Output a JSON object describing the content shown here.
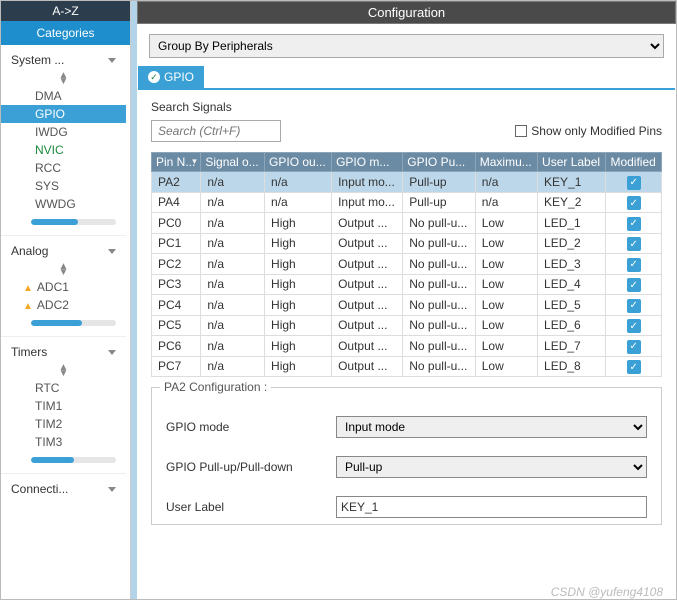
{
  "sidebar": {
    "az_label": "A->Z",
    "categories_label": "Categories",
    "groups": [
      {
        "title": "System ...",
        "items": [
          {
            "label": "DMA"
          },
          {
            "label": "GPIO",
            "selected": true
          },
          {
            "label": "IWDG"
          },
          {
            "label": "NVIC",
            "green": true
          },
          {
            "label": "RCC"
          },
          {
            "label": "SYS"
          },
          {
            "label": "WWDG"
          }
        ],
        "usage_pct": 55
      },
      {
        "title": "Analog",
        "items": [
          {
            "label": "ADC1",
            "warn": true
          },
          {
            "label": "ADC2",
            "warn": true
          }
        ],
        "usage_pct": 60
      },
      {
        "title": "Timers",
        "items": [
          {
            "label": "RTC"
          },
          {
            "label": "TIM1"
          },
          {
            "label": "TIM2"
          },
          {
            "label": "TIM3"
          }
        ],
        "usage_pct": 50
      },
      {
        "title": "Connecti...",
        "items": [],
        "usage_pct": 0
      }
    ]
  },
  "header": {
    "title": "Configuration"
  },
  "group_by": {
    "selected": "Group By Peripherals"
  },
  "tab": {
    "label": "GPIO"
  },
  "signals": {
    "label": "Search Signals",
    "placeholder": "Search (Ctrl+F)",
    "show_only_label": "Show only Modified Pins"
  },
  "table": {
    "columns": [
      "Pin N...",
      "Signal o...",
      "GPIO ou...",
      "GPIO m...",
      "GPIO Pu...",
      "Maximu...",
      "User Label",
      "Modified"
    ],
    "rows": [
      {
        "pin": "PA2",
        "signal": "n/a",
        "output": "n/a",
        "mode": "Input mo...",
        "pull": "Pull-up",
        "speed": "n/a",
        "label": "KEY_1",
        "modified": true,
        "selected": true
      },
      {
        "pin": "PA4",
        "signal": "n/a",
        "output": "n/a",
        "mode": "Input mo...",
        "pull": "Pull-up",
        "speed": "n/a",
        "label": "KEY_2",
        "modified": true
      },
      {
        "pin": "PC0",
        "signal": "n/a",
        "output": "High",
        "mode": "Output ...",
        "pull": "No pull-u...",
        "speed": "Low",
        "label": "LED_1",
        "modified": true
      },
      {
        "pin": "PC1",
        "signal": "n/a",
        "output": "High",
        "mode": "Output ...",
        "pull": "No pull-u...",
        "speed": "Low",
        "label": "LED_2",
        "modified": true
      },
      {
        "pin": "PC2",
        "signal": "n/a",
        "output": "High",
        "mode": "Output ...",
        "pull": "No pull-u...",
        "speed": "Low",
        "label": "LED_3",
        "modified": true
      },
      {
        "pin": "PC3",
        "signal": "n/a",
        "output": "High",
        "mode": "Output ...",
        "pull": "No pull-u...",
        "speed": "Low",
        "label": "LED_4",
        "modified": true
      },
      {
        "pin": "PC4",
        "signal": "n/a",
        "output": "High",
        "mode": "Output ...",
        "pull": "No pull-u...",
        "speed": "Low",
        "label": "LED_5",
        "modified": true
      },
      {
        "pin": "PC5",
        "signal": "n/a",
        "output": "High",
        "mode": "Output ...",
        "pull": "No pull-u...",
        "speed": "Low",
        "label": "LED_6",
        "modified": true
      },
      {
        "pin": "PC6",
        "signal": "n/a",
        "output": "High",
        "mode": "Output ...",
        "pull": "No pull-u...",
        "speed": "Low",
        "label": "LED_7",
        "modified": true
      },
      {
        "pin": "PC7",
        "signal": "n/a",
        "output": "High",
        "mode": "Output ...",
        "pull": "No pull-u...",
        "speed": "Low",
        "label": "LED_8",
        "modified": true
      }
    ]
  },
  "pin_config": {
    "legend": "PA2 Configuration :",
    "rows": [
      {
        "label": "GPIO mode",
        "type": "select",
        "value": "Input mode"
      },
      {
        "label": "GPIO Pull-up/Pull-down",
        "type": "select",
        "value": "Pull-up"
      },
      {
        "label": "User Label",
        "type": "text",
        "value": "KEY_1"
      }
    ]
  },
  "watermark": "CSDN @yufeng4108",
  "colors": {
    "accent": "#3aa0d6",
    "header_bg": "#4a4a4a",
    "th_bg": "#6b8aa3",
    "row_selected": "#bcd7ea",
    "categories_bg": "#1e8fcc",
    "az_bg": "#2c3e4d"
  }
}
